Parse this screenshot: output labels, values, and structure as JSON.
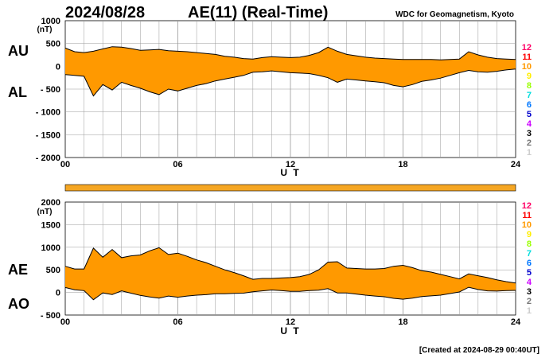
{
  "header": {
    "date": "2024/08/28",
    "title": "AE(11) (Real-Time)",
    "source": "WDC for Geomagnetism, Kyoto"
  },
  "footer": {
    "created": "[Created at 2024-08-29 00:40UT]"
  },
  "colors": {
    "fill": "#FF9900",
    "line": "#000000",
    "grid": "#999999",
    "bar": "#F5A623"
  },
  "hour_legend": [
    {
      "label": "12",
      "color": "#FF0066"
    },
    {
      "label": "11",
      "color": "#FF0000"
    },
    {
      "label": "10",
      "color": "#FF9900"
    },
    {
      "label": "9",
      "color": "#FFEE00"
    },
    {
      "label": "8",
      "color": "#99FF00"
    },
    {
      "label": "7",
      "color": "#00DDDD"
    },
    {
      "label": "6",
      "color": "#0077FF"
    },
    {
      "label": "5",
      "color": "#0000CC"
    },
    {
      "label": "4",
      "color": "#CC00FF"
    },
    {
      "label": "3",
      "color": "#000000"
    },
    {
      "label": "2",
      "color": "#777777"
    },
    {
      "label": "1",
      "color": "#CCCCCC"
    }
  ],
  "chart_data": [
    {
      "type": "area",
      "side_labels": [
        "AU",
        "AL"
      ],
      "ylabel": "(nT)",
      "xlabel": "U T",
      "xlim": [
        0,
        24
      ],
      "ylim": [
        -2000,
        1000
      ],
      "yticks": [
        1000,
        500,
        0,
        -500,
        -1000,
        -1500,
        -2000
      ],
      "ytick_labels": [
        "1000",
        "500",
        "0",
        "- 500",
        "- 1000",
        "- 1500",
        "- 2000"
      ],
      "xticks": [
        0,
        6,
        12,
        18,
        24
      ],
      "xtick_labels": [
        "00",
        "06",
        "12",
        "18",
        "24"
      ],
      "grid": true,
      "series": [
        {
          "name": "AU",
          "x": [
            0,
            0.5,
            1,
            1.5,
            2,
            2.5,
            3,
            3.5,
            4,
            4.5,
            5,
            5.5,
            6,
            6.5,
            7,
            7.5,
            8,
            8.5,
            9,
            9.5,
            10,
            10.5,
            11,
            11.5,
            12,
            12.5,
            13,
            13.5,
            14,
            14.5,
            15,
            15.5,
            16,
            16.5,
            17,
            17.5,
            18,
            18.5,
            19,
            19.5,
            20,
            20.5,
            21,
            21.5,
            22,
            22.5,
            23,
            23.5,
            24
          ],
          "values": [
            400,
            320,
            300,
            330,
            380,
            430,
            420,
            390,
            350,
            360,
            370,
            340,
            330,
            320,
            300,
            280,
            260,
            220,
            200,
            170,
            160,
            190,
            210,
            200,
            190,
            200,
            240,
            300,
            420,
            330,
            260,
            230,
            200,
            180,
            170,
            160,
            150,
            150,
            150,
            150,
            140,
            150,
            160,
            320,
            250,
            200,
            170,
            160,
            150
          ]
        },
        {
          "name": "AL",
          "x": [
            0,
            0.5,
            1,
            1.5,
            2,
            2.5,
            3,
            3.5,
            4,
            4.5,
            5,
            5.5,
            6,
            6.5,
            7,
            7.5,
            8,
            8.5,
            9,
            9.5,
            10,
            10.5,
            11,
            11.5,
            12,
            12.5,
            13,
            13.5,
            14,
            14.5,
            15,
            15.5,
            16,
            16.5,
            17,
            17.5,
            18,
            18.5,
            19,
            19.5,
            20,
            20.5,
            21,
            21.5,
            22,
            22.5,
            23,
            23.5,
            24
          ],
          "values": [
            -180,
            -200,
            -220,
            -650,
            -400,
            -520,
            -350,
            -420,
            -480,
            -560,
            -620,
            -500,
            -540,
            -480,
            -420,
            -380,
            -320,
            -280,
            -240,
            -200,
            -130,
            -120,
            -100,
            -120,
            -140,
            -150,
            -160,
            -200,
            -250,
            -350,
            -280,
            -300,
            -320,
            -340,
            -360,
            -420,
            -450,
            -400,
            -330,
            -300,
            -260,
            -200,
            -140,
            -90,
            -120,
            -130,
            -110,
            -80,
            -60
          ]
        }
      ]
    },
    {
      "type": "area",
      "side_labels": [
        "AE",
        "AO"
      ],
      "ylabel": "(nT)",
      "xlabel": "U T",
      "xlim": [
        0,
        24
      ],
      "ylim": [
        -500,
        2000
      ],
      "yticks": [
        2000,
        1500,
        1000,
        500,
        0,
        -500
      ],
      "ytick_labels": [
        "2000",
        "1500",
        "1000",
        "500",
        "0",
        "- 500"
      ],
      "xticks": [
        0,
        6,
        12,
        18,
        24
      ],
      "xtick_labels": [
        "00",
        "06",
        "12",
        "18",
        "24"
      ],
      "grid": true,
      "series": [
        {
          "name": "AE",
          "x": [
            0,
            0.5,
            1,
            1.5,
            2,
            2.5,
            3,
            3.5,
            4,
            4.5,
            5,
            5.5,
            6,
            6.5,
            7,
            7.5,
            8,
            8.5,
            9,
            9.5,
            10,
            10.5,
            11,
            11.5,
            12,
            12.5,
            13,
            13.5,
            14,
            14.5,
            15,
            15.5,
            16,
            16.5,
            17,
            17.5,
            18,
            18.5,
            19,
            19.5,
            20,
            20.5,
            21,
            21.5,
            22,
            22.5,
            23,
            23.5,
            24
          ],
          "values": [
            580,
            520,
            520,
            980,
            780,
            950,
            770,
            810,
            830,
            920,
            990,
            840,
            870,
            800,
            720,
            660,
            580,
            500,
            440,
            370,
            290,
            310,
            310,
            320,
            330,
            350,
            400,
            500,
            670,
            680,
            540,
            530,
            520,
            520,
            530,
            580,
            600,
            550,
            480,
            450,
            400,
            350,
            300,
            410,
            370,
            330,
            280,
            240,
            210
          ]
        },
        {
          "name": "AO",
          "x": [
            0,
            0.5,
            1,
            1.5,
            2,
            2.5,
            3,
            3.5,
            4,
            4.5,
            5,
            5.5,
            6,
            6.5,
            7,
            7.5,
            8,
            8.5,
            9,
            9.5,
            10,
            10.5,
            11,
            11.5,
            12,
            12.5,
            13,
            13.5,
            14,
            14.5,
            15,
            15.5,
            16,
            16.5,
            17,
            17.5,
            18,
            18.5,
            19,
            19.5,
            20,
            20.5,
            21,
            21.5,
            22,
            22.5,
            23,
            23.5,
            24
          ],
          "values": [
            110,
            60,
            40,
            -160,
            -10,
            -45,
            35,
            -15,
            -65,
            -100,
            -125,
            -80,
            -105,
            -80,
            -60,
            -50,
            -30,
            -30,
            -20,
            -15,
            15,
            35,
            55,
            40,
            25,
            25,
            40,
            50,
            85,
            -10,
            -10,
            -35,
            -60,
            -80,
            -95,
            -130,
            -150,
            -125,
            -90,
            -75,
            -60,
            -25,
            10,
            115,
            65,
            35,
            30,
            40,
            45
          ]
        }
      ]
    }
  ]
}
